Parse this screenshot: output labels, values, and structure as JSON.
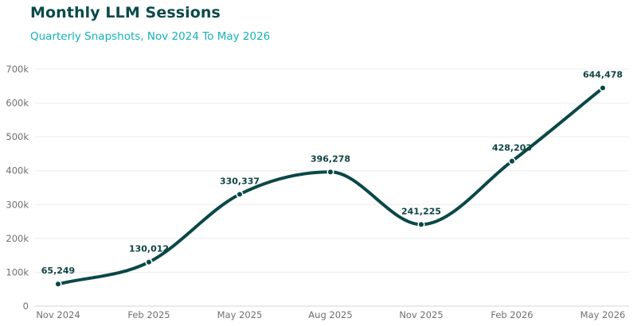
{
  "title": "Monthly LLM Sessions",
  "subtitle": "Quarterly Snapshots, Nov 2024 To May 2026",
  "colors": {
    "line": "#0b4848",
    "title": "#0b4a4a",
    "subtitle": "#14b3b8",
    "grid": "#ececec"
  },
  "chart_data": {
    "type": "line",
    "categories": [
      "Nov 2024",
      "Feb 2025",
      "May 2025",
      "Aug 2025",
      "Nov 2025",
      "Feb 2026",
      "May 2026"
    ],
    "series": [
      {
        "values": [
          65249,
          130012,
          330337,
          396278,
          241225,
          428203,
          644478
        ]
      }
    ],
    "data_labels": [
      "65,249",
      "130,012",
      "330,337",
      "396,278",
      "241,225",
      "428,203",
      "644,478"
    ],
    "yticks": [
      0,
      100000,
      200000,
      300000,
      400000,
      500000,
      600000,
      700000
    ],
    "ytick_labels": [
      "0",
      "100k",
      "200k",
      "300k",
      "400k",
      "500k",
      "600k",
      "700k"
    ],
    "ylim": [
      0,
      700000
    ],
    "grid": true,
    "smooth": true
  }
}
